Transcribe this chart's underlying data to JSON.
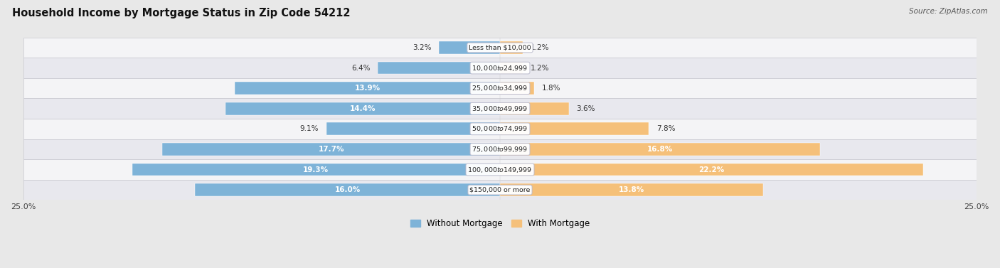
{
  "title": "Household Income by Mortgage Status in Zip Code 54212",
  "source": "Source: ZipAtlas.com",
  "categories": [
    "Less than $10,000",
    "$10,000 to $24,999",
    "$25,000 to $34,999",
    "$35,000 to $49,999",
    "$50,000 to $74,999",
    "$75,000 to $99,999",
    "$100,000 to $149,999",
    "$150,000 or more"
  ],
  "without_mortgage": [
    3.2,
    6.4,
    13.9,
    14.4,
    9.1,
    17.7,
    19.3,
    16.0
  ],
  "with_mortgage": [
    1.2,
    1.2,
    1.8,
    3.6,
    7.8,
    16.8,
    22.2,
    13.8
  ],
  "color_without": "#7EB3D8",
  "color_with": "#F5C07A",
  "xlim": 25.0,
  "background_color": "#e8e8e8",
  "row_bg_even": "#f0f0f0",
  "row_bg_odd": "#e0e0e8",
  "legend_label_without": "Without Mortgage",
  "legend_label_with": "With Mortgage",
  "label_threshold": 10.0,
  "bar_height": 0.62,
  "label_fontsize": 7.5,
  "category_fontsize": 6.8,
  "title_fontsize": 10.5,
  "source_fontsize": 7.5
}
